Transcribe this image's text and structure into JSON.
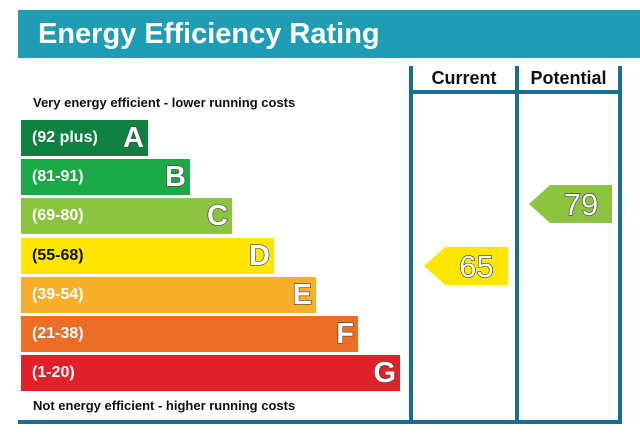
{
  "header": {
    "title": "Energy Efficiency Rating"
  },
  "columns": {
    "current": "Current",
    "potential": "Potential"
  },
  "notes": {
    "top": "Very energy efficient - lower running costs",
    "bottom": "Not energy efficient - higher running costs"
  },
  "chart_data": {
    "type": "bar",
    "title": "Energy Efficiency Rating",
    "bands": [
      {
        "letter": "A",
        "range": "(92 plus)",
        "min": 92,
        "max": null,
        "color": "#0e8040"
      },
      {
        "letter": "B",
        "range": "(81-91)",
        "min": 81,
        "max": 91,
        "color": "#1ba846"
      },
      {
        "letter": "C",
        "range": "(69-80)",
        "min": 69,
        "max": 80,
        "color": "#8cc33f"
      },
      {
        "letter": "D",
        "range": "(55-68)",
        "min": 55,
        "max": 68,
        "color": "#ffe600"
      },
      {
        "letter": "E",
        "range": "(39-54)",
        "min": 39,
        "max": 54,
        "color": "#f7af2a"
      },
      {
        "letter": "F",
        "range": "(21-38)",
        "min": 21,
        "max": 38,
        "color": "#ec6d25"
      },
      {
        "letter": "G",
        "range": "(1-20)",
        "min": 1,
        "max": 20,
        "color": "#e2202a"
      }
    ],
    "current": {
      "label": "Current",
      "value": 65,
      "band": "D",
      "color": "#ffe600"
    },
    "potential": {
      "label": "Potential",
      "value": 79,
      "band": "C",
      "color": "#8cc33f"
    }
  }
}
